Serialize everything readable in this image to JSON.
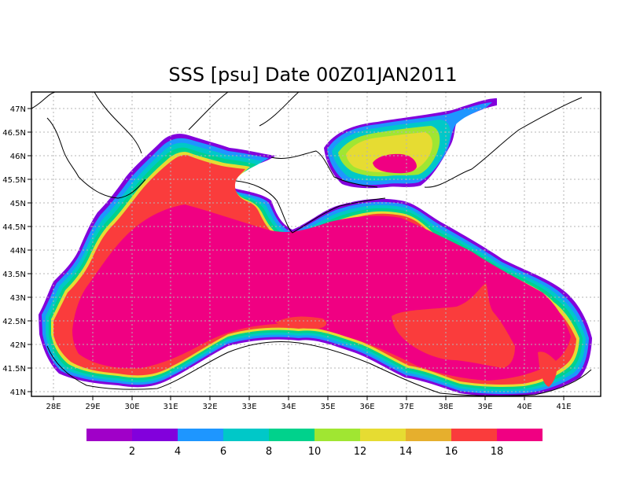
{
  "title": "SSS [psu] Date 00Z01JAN2011",
  "lon_labels": [
    "28E",
    "29E",
    "30E",
    "31E",
    "32E",
    "33E",
    "34E",
    "35E",
    "36E",
    "37E",
    "38E",
    "39E",
    "40E",
    "41E"
  ],
  "lat_labels": [
    "47N",
    "46.5N",
    "46N",
    "45.5N",
    "45N",
    "44.5N",
    "44N",
    "43.5N",
    "43N",
    "42.5N",
    "42N",
    "41.5N",
    "41N"
  ],
  "colorbar": {
    "colors": [
      "#a000c8",
      "#8200dc",
      "#1e96ff",
      "#00c8c8",
      "#00d28c",
      "#a0e632",
      "#e6dc32",
      "#e6af2d",
      "#fa3c3c",
      "#f00082"
    ],
    "labels": [
      "2",
      "4",
      "6",
      "8",
      "10",
      "12",
      "14",
      "16",
      "18"
    ]
  }
}
